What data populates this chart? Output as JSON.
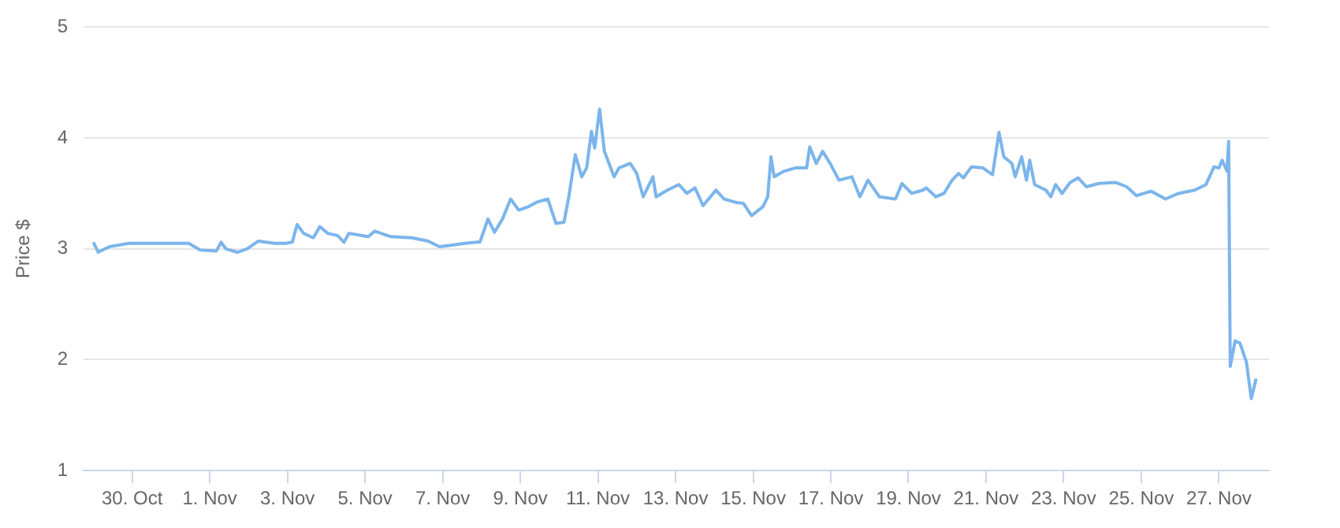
{
  "chart_data": {
    "type": "line",
    "ylabel": "Price $",
    "xlim": [
      "--10-28T18:00",
      "--11-28T07:00"
    ],
    "ylim": [
      1,
      5
    ],
    "yticks": [
      1,
      2,
      3,
      4,
      5
    ],
    "xticks": [
      {
        "value": "--10-30",
        "label": "30. Oct"
      },
      {
        "value": "--11-01",
        "label": "1. Nov"
      },
      {
        "value": "--11-03",
        "label": "3. Nov"
      },
      {
        "value": "--11-05",
        "label": "5. Nov"
      },
      {
        "value": "--11-07",
        "label": "7. Nov"
      },
      {
        "value": "--11-09",
        "label": "9. Nov"
      },
      {
        "value": "--11-11",
        "label": "11. Nov"
      },
      {
        "value": "--11-13",
        "label": "13. Nov"
      },
      {
        "value": "--11-15",
        "label": "15. Nov"
      },
      {
        "value": "--11-17",
        "label": "17. Nov"
      },
      {
        "value": "--11-19",
        "label": "19. Nov"
      },
      {
        "value": "--11-21",
        "label": "21. Nov"
      },
      {
        "value": "--11-23",
        "label": "23. Nov"
      },
      {
        "value": "--11-25",
        "label": "25. Nov"
      },
      {
        "value": "--11-27",
        "label": "27. Nov"
      }
    ],
    "grid": "y",
    "legend": false,
    "marker": "none",
    "line_style": "solid",
    "series": [
      {
        "color": "#7cb5ec",
        "x": [
          "--10-29T00:00",
          "--10-29T03:00",
          "--10-29T10:00",
          "--10-29T22:00",
          "--10-31T11:00",
          "--10-31T18:00",
          "--11-01T04:00",
          "--11-01T07:00",
          "--11-01T10:00",
          "--11-01T17:00",
          "--11-01T23:00",
          "--11-02T06:00",
          "--11-02T16:00",
          "--11-02T23:00",
          "--11-03T03:00",
          "--11-03T06:00",
          "--11-03T10:00",
          "--11-03T16:00",
          "--11-03T20:00",
          "--11-04T01:00",
          "--11-04T07:00",
          "--11-04T11:00",
          "--11-04T14:00",
          "--11-05T02:00",
          "--11-05T06:00",
          "--11-05T16:00",
          "--11-06T05:00",
          "--11-06T15:00",
          "--11-06T22:00",
          "--11-07T04:00",
          "--11-07T14:00",
          "--11-07T21:00",
          "--11-07T23:00",
          "--11-08T04:00",
          "--11-08T08:00",
          "--11-08T13:00",
          "--11-08T18:00",
          "--11-08T23:00",
          "--11-09T05:00",
          "--11-09T10:00",
          "--11-09T17:00",
          "--11-09T22:00",
          "--11-10T03:00",
          "--11-10T06:00",
          "--11-10T10:00",
          "--11-10T14:00",
          "--11-10T17:00",
          "--11-10T20:00",
          "--11-10T22:00",
          "--11-11T01:00",
          "--11-11T04:00",
          "--11-11T10:00",
          "--11-11T13:00",
          "--11-11T20:00",
          "--11-12T00:00",
          "--11-12T04:00",
          "--11-12T10:00",
          "--11-12T12:00",
          "--11-12T19:00",
          "--11-13T02:00",
          "--11-13T07:00",
          "--11-13T12:00",
          "--11-13T17:00",
          "--11-14T01:00",
          "--11-14T06:00",
          "--11-14T13:00",
          "--11-14T18:00",
          "--11-14T23:00",
          "--11-15T06:00",
          "--11-15T09:00",
          "--11-15T11:00",
          "--11-15T13:00",
          "--11-15T19:00",
          "--11-16T02:00",
          "--11-16T09:00",
          "--11-16T11:00",
          "--11-16T15:00",
          "--11-16T19:00",
          "--11-17T00:00",
          "--11-17T05:00",
          "--11-17T13:00",
          "--11-17T18:00",
          "--11-17T23:00",
          "--11-18T06:00",
          "--11-18T16:00",
          "--11-18T20:00",
          "--11-19T02:00",
          "--11-19T09:00",
          "--11-19T11:00",
          "--11-19T17:00",
          "--11-19T22:00",
          "--11-20T03:00",
          "--11-20T07:00",
          "--11-20T10:00",
          "--11-20T15:00",
          "--11-20T22:00",
          "--11-21T04:00",
          "--11-21T08:00",
          "--11-21T11:00",
          "--11-21T16:00",
          "--11-21T18:00",
          "--11-21T22:00",
          "--11-22T01:00",
          "--11-22T03:00",
          "--11-22T06:00",
          "--11-22T13:00",
          "--11-22T16:00",
          "--11-22T19:00",
          "--11-22T23:00",
          "--11-23T04:00",
          "--11-23T09:00",
          "--11-23T14:00",
          "--11-23T22:00",
          "--11-24T08:00",
          "--11-24T15:00",
          "--11-24T21:00",
          "--11-25T06:00",
          "--11-25T15:00",
          "--11-25T23:00",
          "--11-26T09:00",
          "--11-26T16:00",
          "--11-26T21:00",
          "--11-27T00:00",
          "--11-27T02:00",
          "--11-27T05:00",
          "--11-27T06:00",
          "--11-27T07:00",
          "--11-27T10:00",
          "--11-27T13:00",
          "--11-27T17:00",
          "--11-27T20:00",
          "--11-27T23:00"
        ],
        "values": [
          3.06,
          2.97,
          3.02,
          3.05,
          3.05,
          2.99,
          2.98,
          3.06,
          3.0,
          2.97,
          3.0,
          3.07,
          3.05,
          3.05,
          3.06,
          3.22,
          3.14,
          3.1,
          3.2,
          3.14,
          3.12,
          3.06,
          3.14,
          3.11,
          3.16,
          3.11,
          3.1,
          3.07,
          3.02,
          3.03,
          3.05,
          3.06,
          3.06,
          3.27,
          3.15,
          3.27,
          3.45,
          3.35,
          3.38,
          3.42,
          3.45,
          3.23,
          3.24,
          3.47,
          3.85,
          3.65,
          3.73,
          4.06,
          3.91,
          4.26,
          3.88,
          3.65,
          3.73,
          3.77,
          3.68,
          3.47,
          3.65,
          3.47,
          3.53,
          3.58,
          3.5,
          3.55,
          3.39,
          3.53,
          3.45,
          3.42,
          3.41,
          3.3,
          3.38,
          3.47,
          3.83,
          3.65,
          3.7,
          3.73,
          3.73,
          3.92,
          3.77,
          3.88,
          3.76,
          3.62,
          3.65,
          3.47,
          3.62,
          3.47,
          3.45,
          3.59,
          3.5,
          3.53,
          3.55,
          3.47,
          3.5,
          3.62,
          3.68,
          3.64,
          3.74,
          3.73,
          3.67,
          4.05,
          3.83,
          3.77,
          3.65,
          3.83,
          3.62,
          3.8,
          3.58,
          3.53,
          3.47,
          3.58,
          3.5,
          3.6,
          3.64,
          3.56,
          3.59,
          3.6,
          3.56,
          3.48,
          3.52,
          3.45,
          3.5,
          3.53,
          3.58,
          3.74,
          3.73,
          3.8,
          3.7,
          3.97,
          1.94,
          2.17,
          2.15,
          1.98,
          1.65,
          1.83
        ]
      }
    ]
  }
}
